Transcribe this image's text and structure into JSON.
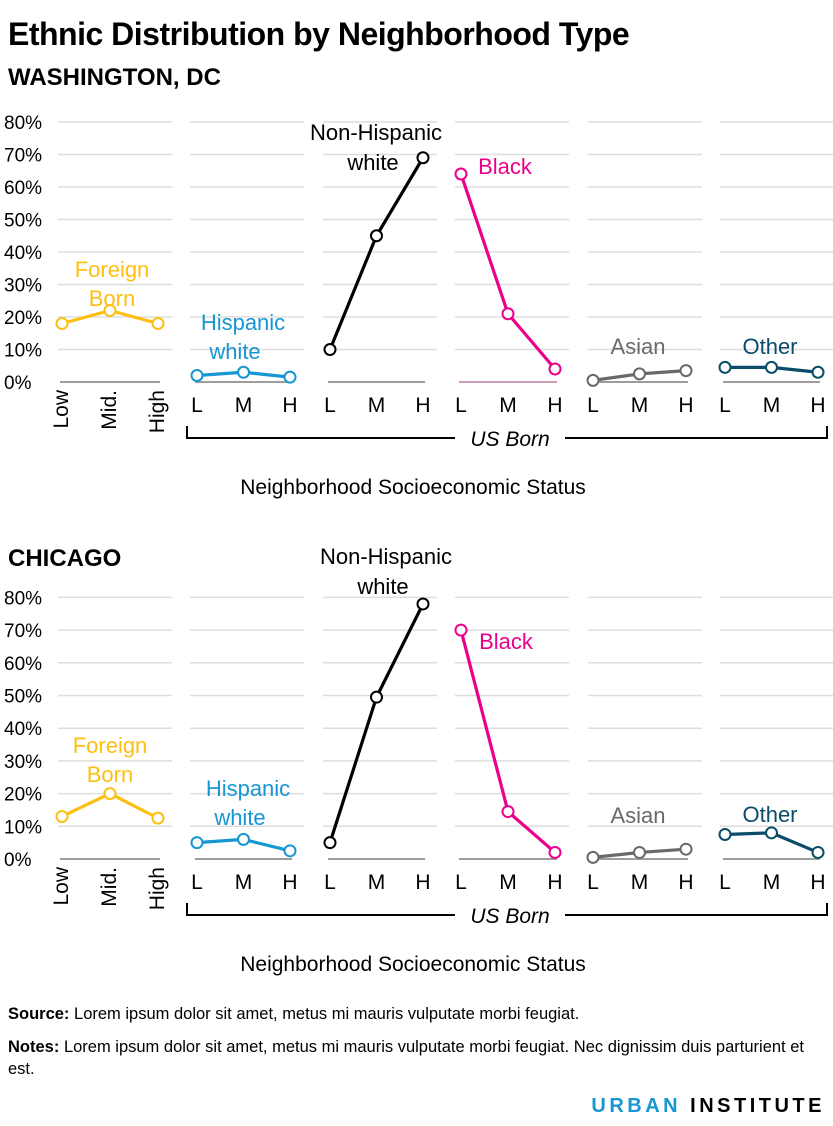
{
  "title": "Ethnic Distribution by Neighborhood Type",
  "colors": {
    "foreign_born": "#fdbf11",
    "hispanic_white": "#1696d2",
    "nonhispanic_white": "#000000",
    "black": "#ec008b",
    "asian": "#696969",
    "other": "#0a4c6a",
    "grid": "#dedddd",
    "baseline": "#9d9d9d"
  },
  "charts": [
    {
      "label": "WASHINGTON, DC"
    },
    {
      "label": "CHICAGO"
    }
  ],
  "chart_data": [
    {
      "type": "line",
      "title": "WASHINGTON, DC",
      "xlabel": "Neighborhood Socioeconomic Status",
      "ylim": [
        0,
        80
      ],
      "y_ticks": [
        "80%",
        "70%",
        "60%",
        "50%",
        "40%",
        "30%",
        "20%",
        "10%",
        "0%"
      ],
      "bracket_label": "US Born",
      "grid": true,
      "series": [
        {
          "name": "Foreign Born",
          "categories": [
            "Low",
            "Mid.",
            "High"
          ],
          "values": [
            18,
            22,
            18
          ]
        },
        {
          "name": "Hispanic white",
          "categories": [
            "L",
            "M",
            "H"
          ],
          "values": [
            2,
            3,
            1.5
          ]
        },
        {
          "name": "Non-Hispanic white",
          "categories": [
            "L",
            "M",
            "H"
          ],
          "values": [
            10,
            45,
            69
          ]
        },
        {
          "name": "Black",
          "categories": [
            "L",
            "M",
            "H"
          ],
          "values": [
            64,
            21,
            4
          ]
        },
        {
          "name": "Asian",
          "categories": [
            "L",
            "M",
            "H"
          ],
          "values": [
            0.5,
            2.5,
            3.5
          ]
        },
        {
          "name": "Other",
          "categories": [
            "L",
            "M",
            "H"
          ],
          "values": [
            4.5,
            4.5,
            3
          ]
        }
      ]
    },
    {
      "type": "line",
      "title": "CHICAGO",
      "xlabel": "Neighborhood Socioeconomic Status",
      "ylim": [
        0,
        80
      ],
      "y_ticks": [
        "80%",
        "70%",
        "60%",
        "50%",
        "40%",
        "30%",
        "20%",
        "10%",
        "0%"
      ],
      "bracket_label": "US Born",
      "grid": true,
      "series": [
        {
          "name": "Foreign Born",
          "categories": [
            "Low",
            "Mid.",
            "High"
          ],
          "values": [
            13,
            20,
            12.5
          ]
        },
        {
          "name": "Hispanic white",
          "categories": [
            "L",
            "M",
            "H"
          ],
          "values": [
            5,
            6,
            2.5
          ]
        },
        {
          "name": "Non-Hispanic white",
          "categories": [
            "L",
            "M",
            "H"
          ],
          "values": [
            5,
            49.5,
            78
          ]
        },
        {
          "name": "Black",
          "categories": [
            "L",
            "M",
            "H"
          ],
          "values": [
            70,
            14.5,
            2
          ]
        },
        {
          "name": "Asian",
          "categories": [
            "L",
            "M",
            "H"
          ],
          "values": [
            0.5,
            2,
            3
          ]
        },
        {
          "name": "Other",
          "categories": [
            "L",
            "M",
            "H"
          ],
          "values": [
            7.5,
            8,
            2
          ]
        }
      ]
    }
  ],
  "footer": {
    "source_label": "Source:",
    "source_text": "Lorem ipsum dolor sit amet, metus mi mauris vulputate morbi feugiat.",
    "notes_label": "Notes:",
    "notes_text": "Lorem ipsum dolor sit amet, metus mi mauris vulputate morbi feugiat. Nec dignissim duis parturient et est."
  },
  "logo": {
    "part1": "URBAN",
    "part2": "INSTITUTE"
  }
}
